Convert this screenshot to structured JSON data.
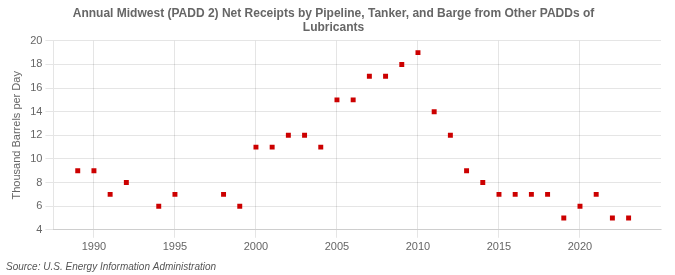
{
  "chart_data": {
    "type": "scatter",
    "title": "Annual Midwest (PADD 2) Net Receipts by Pipeline, Tanker, and Barge from Other PADDs of\nLubricants",
    "ylabel": "Thousand Barrels per Day",
    "source": "Source: U.S. Energy Information Administration",
    "x": [
      1989,
      1990,
      1991,
      1992,
      1994,
      1995,
      1998,
      1999,
      2000,
      2001,
      2002,
      2003,
      2004,
      2005,
      2006,
      2007,
      2008,
      2009,
      2010,
      2011,
      2012,
      2013,
      2014,
      2015,
      2016,
      2017,
      2018,
      2019,
      2020,
      2021,
      2022,
      2023
    ],
    "values": [
      9,
      9,
      7,
      8,
      6,
      7,
      7,
      6,
      11,
      11,
      12,
      12,
      11,
      15,
      15,
      17,
      17,
      18,
      19,
      14,
      12,
      9,
      8,
      7,
      7,
      7,
      7,
      5,
      6,
      7,
      5,
      5
    ],
    "color": "#cc0000",
    "marker": "square",
    "xlim": [
      1987.5,
      2025.0
    ],
    "xticks": [
      1990,
      1995,
      2000,
      2005,
      2010,
      2015,
      2020
    ],
    "ylim": [
      4,
      20
    ],
    "yticks": [
      4,
      6,
      8,
      10,
      12,
      14,
      16,
      18,
      20
    ],
    "grid": true
  }
}
